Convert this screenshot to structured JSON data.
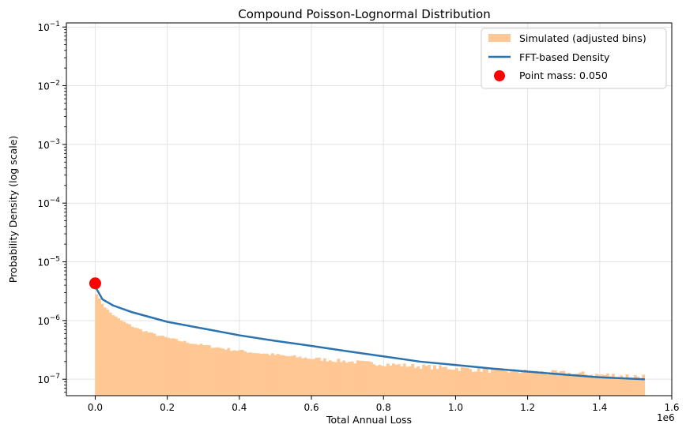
{
  "chart_data": {
    "type": "histogram+line+point",
    "title": "Compound Poisson-Lognormal Distribution",
    "xlabel": "Total Annual Loss",
    "ylabel": "Probability Density (log scale)",
    "x_offset_label": "1e6",
    "xlim": [
      -80000,
      1600000
    ],
    "ylim_log10": [
      -7.28,
      -0.93
    ],
    "yscale": "log",
    "grid": true,
    "legend_position": "top-right",
    "x_ticks": [
      0,
      200000,
      400000,
      600000,
      800000,
      1000000,
      1200000,
      1400000,
      1600000
    ],
    "x_tick_labels": [
      "0.0",
      "0.2",
      "0.4",
      "0.6",
      "0.8",
      "1.0",
      "1.2",
      "1.4",
      "1.6"
    ],
    "y_ticks_exp": [
      -7,
      -6,
      -5,
      -4,
      -3,
      -2,
      -1
    ],
    "y_tick_bases": [
      "10",
      "10",
      "10",
      "10",
      "10",
      "10",
      "10"
    ],
    "y_tick_exponents": [
      "−7",
      "−6",
      "−5",
      "−4",
      "−3",
      "−2",
      "−1"
    ],
    "histogram": {
      "name": "Simulated (adjusted bins)",
      "color": "#ffc794",
      "x_start": 0,
      "x_end": 1525000,
      "bins": 200,
      "density_model": "approximately 3.3e-6 * (1 + x/20000)^-0.78, with bin noise increasing at higher loss"
    },
    "fft_density": {
      "name": "FFT-based Density",
      "color": "#2b73b0",
      "points": [
        [
          0,
          3.8e-06
        ],
        [
          20000,
          2.3e-06
        ],
        [
          50000,
          1.8e-06
        ],
        [
          100000,
          1.4e-06
        ],
        [
          200000,
          9.5e-07
        ],
        [
          300000,
          7.3e-07
        ],
        [
          400000,
          5.6e-07
        ],
        [
          500000,
          4.5e-07
        ],
        [
          600000,
          3.7e-07
        ],
        [
          700000,
          3e-07
        ],
        [
          800000,
          2.45e-07
        ],
        [
          900000,
          2e-07
        ],
        [
          1000000,
          1.75e-07
        ],
        [
          1100000,
          1.52e-07
        ],
        [
          1200000,
          1.35e-07
        ],
        [
          1300000,
          1.2e-07
        ],
        [
          1400000,
          1.08e-07
        ],
        [
          1525000,
          1e-07
        ]
      ]
    },
    "point_mass": {
      "name": "Point mass: 0.050",
      "color": "#ff0000",
      "x": 0,
      "y": 4.3e-06
    },
    "legend": [
      "Simulated (adjusted bins)",
      "FFT-based Density",
      "Point mass: 0.050"
    ]
  }
}
